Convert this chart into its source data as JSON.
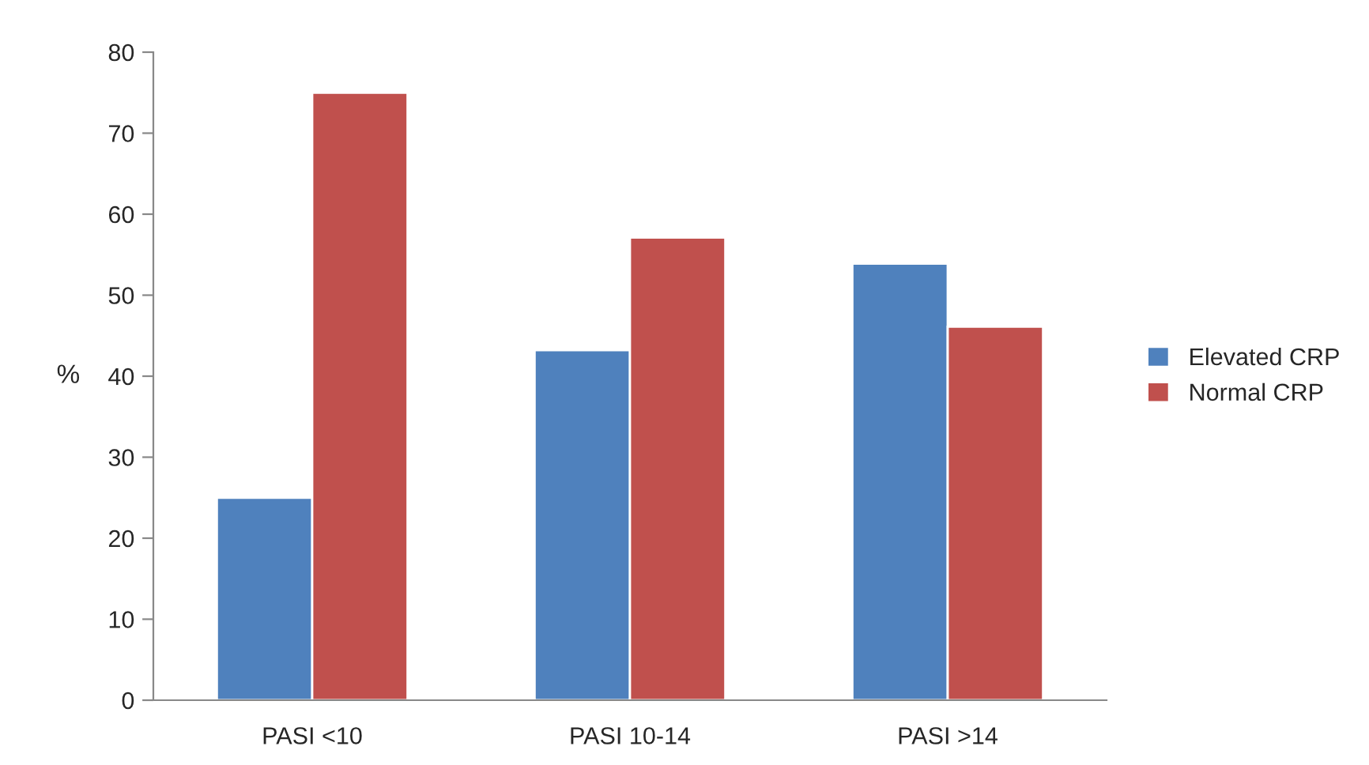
{
  "chart_data": {
    "type": "bar",
    "ylabel": "%",
    "categories": [
      "PASI <10",
      "PASI 10-14",
      "PASI >14"
    ],
    "series": [
      {
        "name": "Elevated CRP",
        "color": "#4f81bd",
        "values": [
          25,
          43.2,
          53.9
        ]
      },
      {
        "name": "Normal CRP",
        "color": "#c0504d",
        "values": [
          75,
          57.1,
          46.1
        ]
      }
    ],
    "ylim": [
      0,
      80
    ],
    "yticks": [
      0,
      10,
      20,
      30,
      40,
      50,
      60,
      70,
      80
    ],
    "grid": false,
    "legend": "right"
  }
}
